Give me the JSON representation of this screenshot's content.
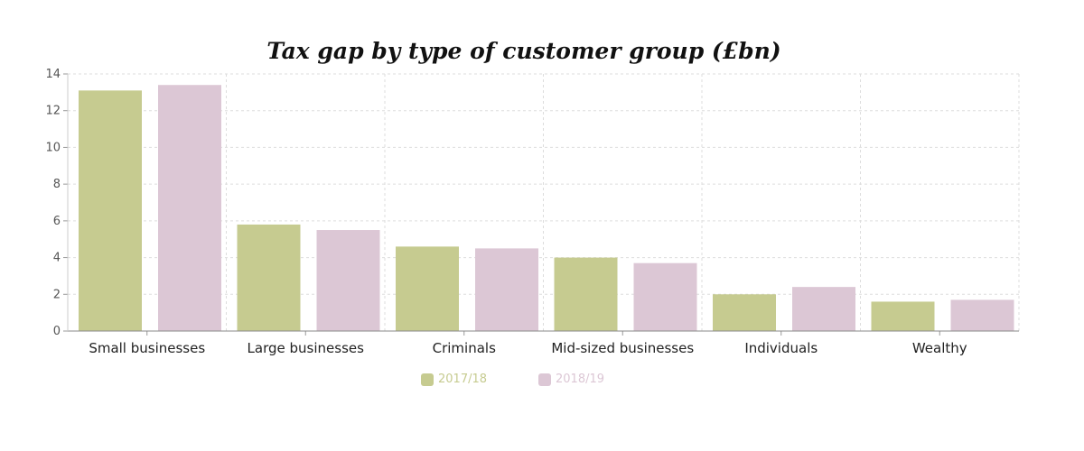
{
  "chart_data": {
    "type": "bar",
    "title": "Tax gap by type of customer group (£bn)",
    "xlabel": "",
    "ylabel": "",
    "categories": [
      "Small businesses",
      "Large businesses",
      "Criminals",
      "Mid-sized businesses",
      "Individuals",
      "Wealthy"
    ],
    "series": [
      {
        "name": "2017/18",
        "color": "#c6cb90",
        "values": [
          13.1,
          5.8,
          4.6,
          4.0,
          2.0,
          1.6
        ]
      },
      {
        "name": "2018/19",
        "color": "#dcc7d5",
        "values": [
          13.4,
          5.5,
          4.5,
          3.7,
          2.4,
          1.7
        ]
      }
    ],
    "ylim": [
      0,
      14
    ],
    "yticks": [
      "0",
      "2",
      "4",
      "6",
      "8",
      "10",
      "12",
      "14"
    ],
    "grid": true,
    "legend": "bottom-center"
  }
}
